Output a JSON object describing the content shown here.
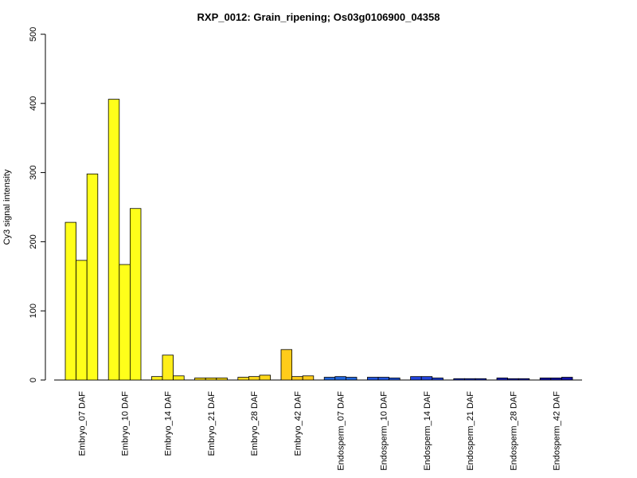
{
  "chart_data": {
    "type": "bar",
    "title": "RXP_0012: Grain_ripening; Os03g0106900_04358",
    "xlabel": "",
    "ylabel": "Cy3 signal intensity",
    "ylim": [
      0,
      500
    ],
    "yticks": [
      0,
      100,
      200,
      300,
      400,
      500
    ],
    "grid": false,
    "legend": "none",
    "categories": [
      {
        "label": "Embryo_07 DAF",
        "values": [
          228,
          173,
          298
        ],
        "color": "#ffff1a"
      },
      {
        "label": "Embryo_10 DAF",
        "values": [
          406,
          167,
          248
        ],
        "color": "#ffff1a"
      },
      {
        "label": "Embryo_14 DAF",
        "values": [
          5,
          36,
          6
        ],
        "color": "#ffee1a"
      },
      {
        "label": "Embryo_21 DAF",
        "values": [
          3,
          3,
          3
        ],
        "color": "#ffe01a"
      },
      {
        "label": "Embryo_28 DAF",
        "values": [
          4,
          5,
          7
        ],
        "color": "#ffd81a"
      },
      {
        "label": "Embryo_42 DAF",
        "values": [
          44,
          5,
          6
        ],
        "color": "#ffcc1a"
      },
      {
        "label": "Endosperm_07 DAF",
        "values": [
          4,
          5,
          4
        ],
        "color": "#2266dd"
      },
      {
        "label": "Endosperm_10 DAF",
        "values": [
          4,
          4,
          3
        ],
        "color": "#2255dd"
      },
      {
        "label": "Endosperm_14 DAF",
        "values": [
          5,
          5,
          3
        ],
        "color": "#2244dd"
      },
      {
        "label": "Endosperm_21 DAF",
        "values": [
          2,
          2,
          2
        ],
        "color": "#1a33cc"
      },
      {
        "label": "Endosperm_28 DAF",
        "values": [
          3,
          2,
          2
        ],
        "color": "#1a22bb"
      },
      {
        "label": "Endosperm_42 DAF",
        "values": [
          3,
          3,
          4
        ],
        "color": "#1111aa"
      }
    ]
  }
}
